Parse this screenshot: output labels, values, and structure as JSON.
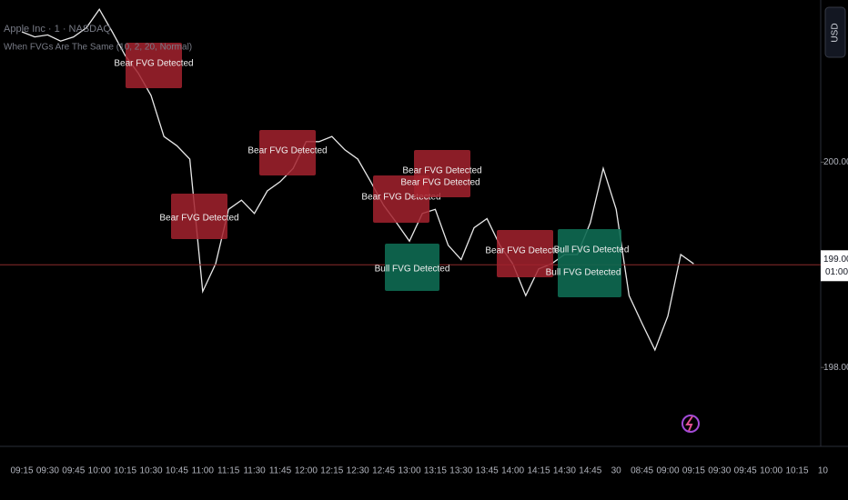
{
  "chart_data": {
    "type": "line",
    "title": "Apple Inc · 1 · NASDAQ",
    "subtitle": "When FVGs Are The Same (10, 2, 20, Normal)",
    "currency": "USD",
    "color": "#e8e8e8",
    "categories": [
      "09:15",
      null,
      "09:30",
      null,
      "09:45",
      null,
      "10:00",
      null,
      "10:15",
      null,
      "10:30",
      null,
      "10:45",
      null,
      "11:00",
      null,
      "11:15",
      null,
      "11:30",
      null,
      "11:45",
      null,
      "12:00",
      null,
      "12:15",
      null,
      "12:30",
      null,
      "12:45",
      null,
      "13:00",
      null,
      "13:15",
      null,
      "13:30",
      null,
      "13:45",
      null,
      "14:00",
      null,
      "14:15",
      null,
      "14:30",
      null,
      "14:45",
      null,
      "30",
      null,
      "08:45",
      null,
      "09:00",
      null,
      "09:15",
      null,
      "09:30",
      null,
      "09:45",
      null,
      "10:00",
      null,
      "10:15",
      null,
      "10",
      null
    ],
    "values": [
      201.27,
      201.22,
      201.24,
      201.18,
      201.22,
      201.31,
      201.49,
      201.27,
      201.04,
      200.87,
      200.65,
      200.25,
      200.16,
      200.03,
      198.74,
      199.01,
      199.54,
      199.63,
      199.5,
      199.72,
      199.81,
      199.94,
      200.2,
      200.2,
      200.25,
      200.12,
      200.03,
      199.81,
      199.58,
      199.41,
      199.23,
      199.5,
      199.54,
      199.19,
      199.05,
      199.36,
      199.45,
      199.19,
      199.01,
      198.7,
      198.96,
      199.01,
      199.1,
      199.1,
      199.41,
      199.94,
      199.54,
      198.7,
      198.43,
      198.17,
      198.5,
      199.1,
      199.01,
      null,
      null,
      null,
      null,
      null,
      null,
      null,
      null,
      null,
      null,
      null
    ],
    "ylim": [
      197.24,
      201.58
    ],
    "yticks": [
      {
        "value": 200,
        "label": "200.00"
      },
      {
        "value": 198,
        "label": "198.00"
      }
    ],
    "last_price": {
      "value": 199,
      "label": "199.00"
    },
    "countdown": "01:00",
    "grid": false,
    "annotations": [
      "Bear FVG Detected",
      "Bear FVG Detected",
      "Bear FVG Detected",
      "Bear FVG Detected",
      "Bear FVG Detected",
      "Bear FVG Detected",
      "Bear FVG Detected",
      "Bull FVG Detected",
      "Bull FVG Detected",
      "Bull FVG Detected"
    ]
  }
}
